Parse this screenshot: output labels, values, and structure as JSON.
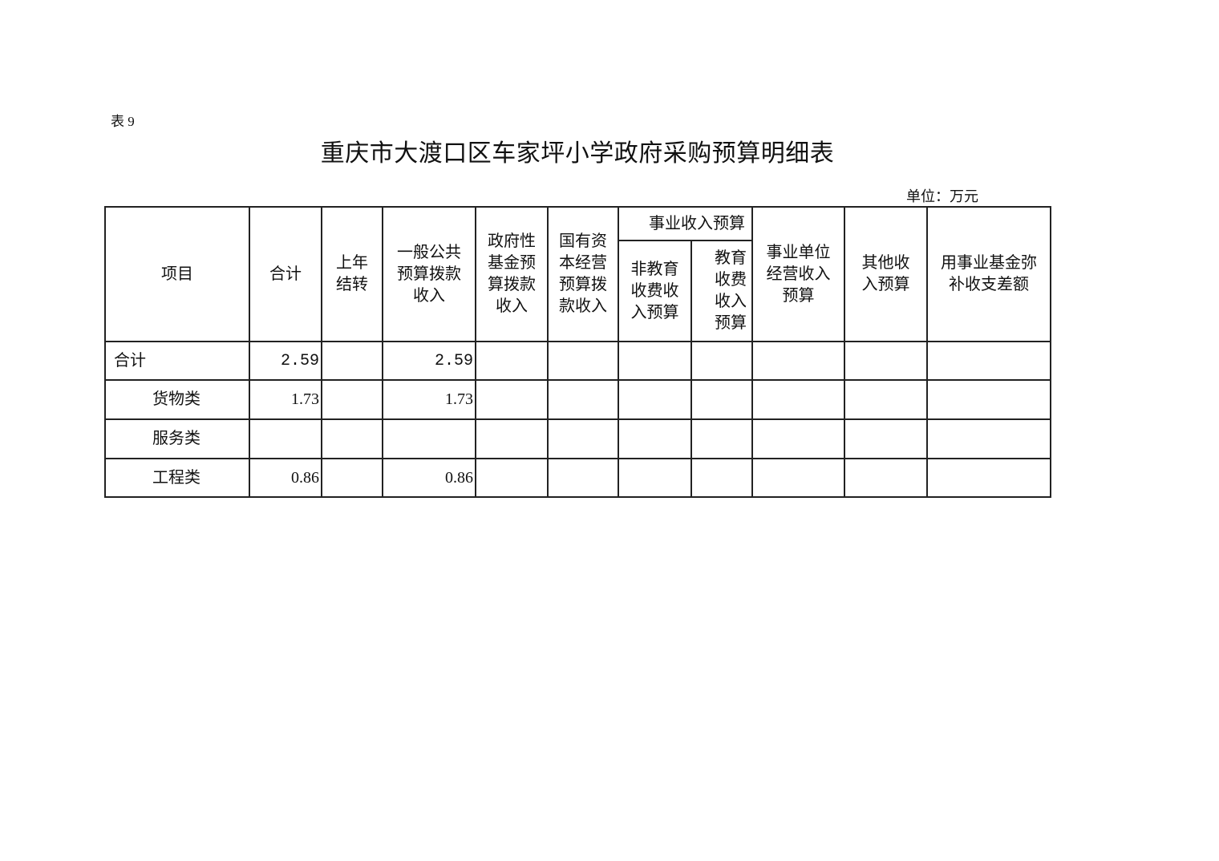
{
  "doc": {
    "table_no": "表 9",
    "title": "重庆市大渡口区车家坪小学政府采购预算明细表",
    "unit": "单位：万元"
  },
  "table": {
    "headers": {
      "item": "项目",
      "total": "合计",
      "carryover": "上年结转",
      "general_budget": "一般公共预算拨款收入",
      "gov_fund": "政府性基金预算拨款收入",
      "state_capital": "国有资本经营预算拨款收入",
      "business_income_group": "事业收入预算",
      "non_edu_fee": "非教育收费收入预算",
      "edu_fee": "教育收费收入预算",
      "operating_income": "事业单位经营收入预算",
      "other_income": "其他收入预算",
      "fund_offset": "用事业基金弥补收支差额"
    },
    "rows": [
      {
        "item": "合计",
        "total": "2.59",
        "carryover": "",
        "general_budget": "2.59"
      },
      {
        "item": "货物类",
        "total": "1.73",
        "carryover": "",
        "general_budget": "1.73"
      },
      {
        "item": "服务类",
        "total": "",
        "carryover": "",
        "general_budget": ""
      },
      {
        "item": "工程类",
        "total": "0.86",
        "carryover": "",
        "general_budget": "0.86"
      }
    ]
  }
}
